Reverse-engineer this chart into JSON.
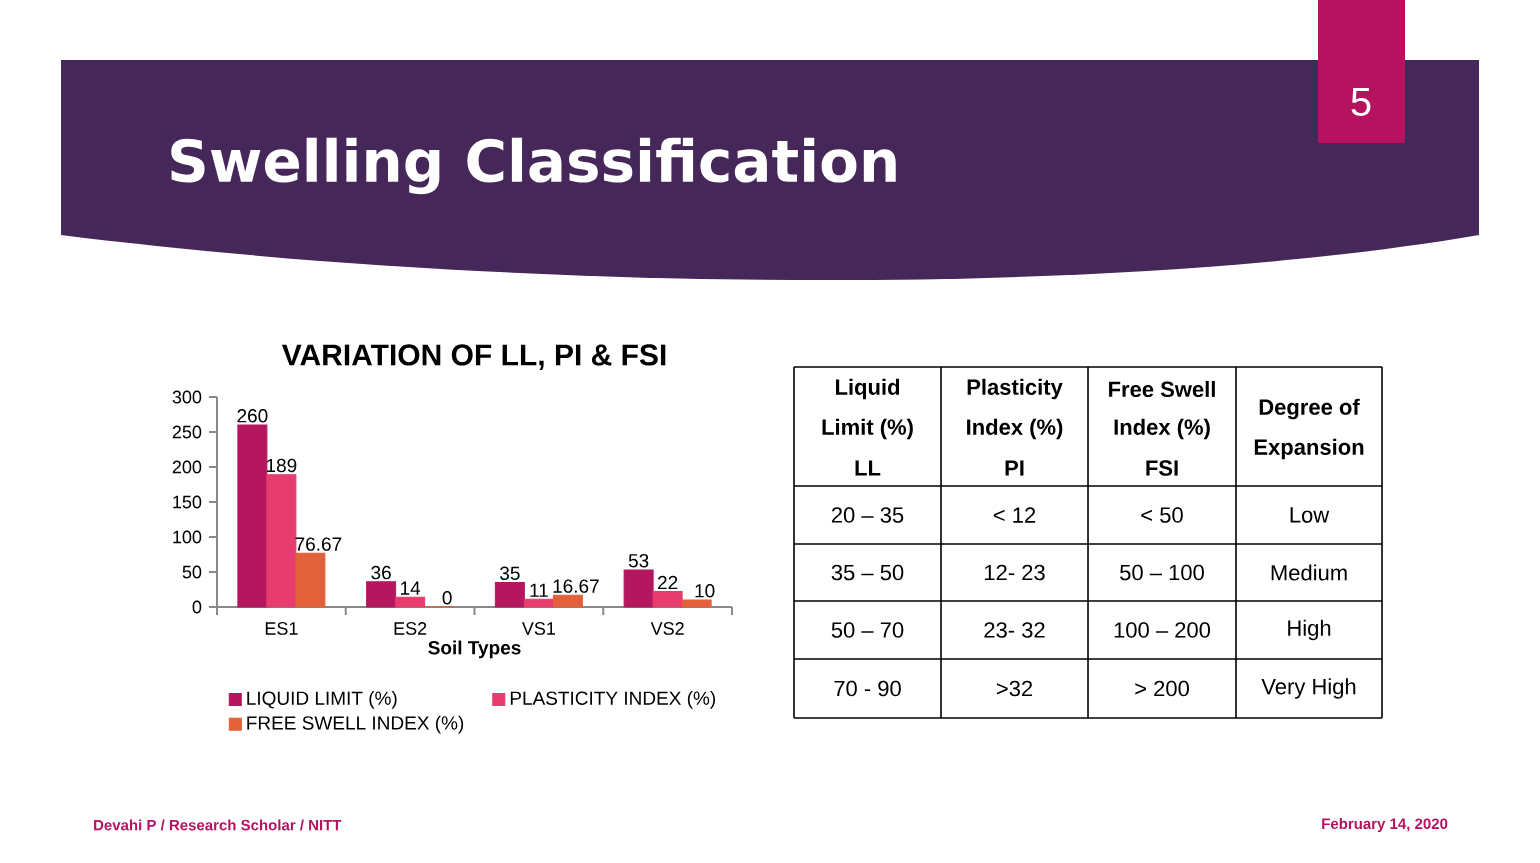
{
  "chart_data": [
    {
      "type": "bar",
      "title": "VARIATION OF LL, PI & FSI",
      "xlabel": "Soil Types",
      "categories": [
        "ES1",
        "ES2",
        "VS1",
        "VS2"
      ],
      "series": [
        {
          "name": "LIQUID LIMIT (%)",
          "color": "#b5175f",
          "values": [
            260,
            36,
            35,
            53
          ],
          "value_labels": [
            "260",
            "36",
            "35",
            "53"
          ]
        },
        {
          "name": "PLASTICITY INDEX (%)",
          "color": "#e63c6e",
          "values": [
            189,
            14,
            11,
            22
          ],
          "value_labels": [
            "189",
            "14",
            "11",
            "22"
          ]
        },
        {
          "name": "FREE SWELL INDEX (%)",
          "color": "#e2603a",
          "values": [
            76.67,
            0,
            16.67,
            10
          ],
          "value_labels": [
            "76.67",
            "0",
            "16.67",
            "10"
          ]
        }
      ],
      "ylim": [
        0,
        300
      ],
      "yticks": [
        0,
        50,
        100,
        150,
        200,
        250,
        300
      ],
      "grid": false,
      "legend": "bottom"
    },
    {
      "type": "other",
      "title": "Swelling Classification",
      "annotations": [
        "5",
        "Liquid",
        "Limit (%)",
        "LL",
        "Plasticity",
        "Index (%)",
        "PI",
        "Free Swell",
        "Index (%)",
        "FSI",
        "Degree of",
        "Expansion",
        "20 – 35",
        "< 12",
        "< 50",
        "Low",
        "35 – 50",
        "12- 23",
        "50 – 100",
        "Medium",
        "50 – 70",
        "23- 32",
        "100 – 200",
        "High",
        "70 - 90",
        ">32",
        "> 200",
        "Very High",
        "Devahi P / Research Scholar / NITT",
        "February 14, 2020"
      ]
    }
  ]
}
